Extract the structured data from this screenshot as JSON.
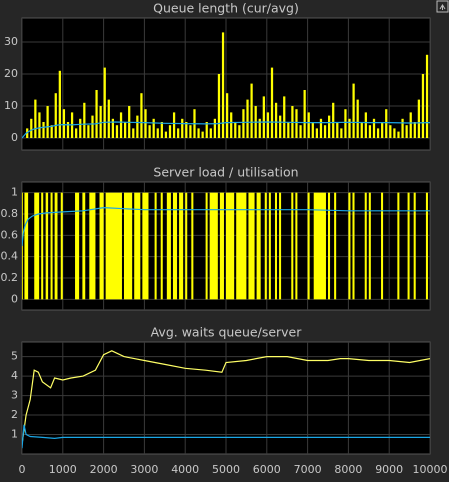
{
  "chart_data": [
    {
      "type": "line",
      "title": "Queue length (cur/avg)",
      "xlim": [
        0,
        10000
      ],
      "ylim": [
        -3.75,
        37.5
      ],
      "yticks": [
        0,
        10,
        20,
        30
      ],
      "xticks": [
        0,
        1000,
        2000,
        3000,
        4000,
        5000,
        6000,
        7000,
        8000,
        9000,
        10000
      ],
      "show_xtick_labels": false,
      "grid": true,
      "series": [
        {
          "type": "bar",
          "color": "#ffff00",
          "x": [
            0,
            100,
            200,
            300,
            400,
            500,
            600,
            700,
            800,
            900,
            1000,
            1100,
            1200,
            1300,
            1400,
            1500,
            1600,
            1700,
            1800,
            1900,
            2000,
            2100,
            2200,
            2300,
            2400,
            2500,
            2600,
            2700,
            2800,
            2900,
            3000,
            3100,
            3200,
            3300,
            3400,
            3500,
            3600,
            3700,
            3800,
            3900,
            4000,
            4100,
            4200,
            4300,
            4400,
            4500,
            4600,
            4700,
            4800,
            4900,
            5000,
            5100,
            5200,
            5300,
            5400,
            5500,
            5600,
            5700,
            5800,
            5900,
            6000,
            6100,
            6200,
            6300,
            6400,
            6500,
            6600,
            6700,
            6800,
            6900,
            7000,
            7100,
            7200,
            7300,
            7400,
            7500,
            7600,
            7700,
            7800,
            7900,
            8000,
            8100,
            8200,
            8300,
            8400,
            8500,
            8600,
            8700,
            8800,
            8900,
            9000,
            9100,
            9200,
            9300,
            9400,
            9500,
            9600,
            9700,
            9800,
            9900,
            10000
          ],
          "values": [
            0,
            3,
            6,
            12,
            8,
            5,
            10,
            4,
            14,
            21,
            9,
            5,
            8,
            3,
            6,
            11,
            4,
            7,
            15,
            10,
            22,
            12,
            6,
            4,
            8,
            5,
            10,
            3,
            7,
            14,
            9,
            4,
            6,
            3,
            5,
            2,
            4,
            8,
            3,
            6,
            5,
            4,
            9,
            3,
            2,
            5,
            3,
            6,
            20,
            33,
            14,
            8,
            5,
            4,
            9,
            12,
            17,
            10,
            6,
            13,
            8,
            22,
            11,
            7,
            13,
            5,
            10,
            9,
            4,
            15,
            8,
            5,
            3,
            6,
            4,
            7,
            11,
            5,
            3,
            9,
            6,
            17,
            12,
            5,
            8,
            4,
            6,
            3,
            5,
            9,
            4,
            3,
            2,
            6,
            4,
            8,
            5,
            12,
            20,
            26,
            10
          ]
        },
        {
          "type": "line",
          "color": "#1aa6e6",
          "x": [
            0,
            100,
            200,
            300,
            400,
            500,
            700,
            900,
            1000,
            1200,
            1500,
            1800,
            2000,
            2300,
            2600,
            3000,
            3500,
            4000,
            4500,
            4800,
            5000,
            5500,
            6000,
            6500,
            7000,
            7500,
            8000,
            8500,
            9000,
            9500,
            10000
          ],
          "values": [
            0,
            1.5,
            2.3,
            2.8,
            3.1,
            3.3,
            3.6,
            4.1,
            4.2,
            4.1,
            4.3,
            4.4,
            4.9,
            5,
            4.9,
            4.8,
            4.6,
            4.5,
            4.4,
            4.5,
            4.8,
            4.9,
            5,
            4.9,
            4.8,
            4.8,
            4.9,
            4.8,
            4.8,
            4.7,
            4.8
          ]
        }
      ]
    },
    {
      "type": "line",
      "title": "Server load / utilisation",
      "xlim": [
        0,
        10000
      ],
      "ylim": [
        -0.1,
        1.1
      ],
      "yticks": [
        0,
        0.2,
        0.4,
        0.6,
        0.8,
        1
      ],
      "xticks": [
        0,
        1000,
        2000,
        3000,
        4000,
        5000,
        6000,
        7000,
        8000,
        9000,
        10000
      ],
      "show_xtick_labels": false,
      "grid": true,
      "series": [
        {
          "type": "stairs",
          "color": "#ffff00",
          "x": [
            0,
            20,
            60,
            150,
            300,
            420,
            470,
            520,
            580,
            640,
            700,
            750,
            800,
            870,
            950,
            1000,
            1300,
            1400,
            1480,
            1550,
            1650,
            1800,
            1900,
            2000,
            2050,
            2450,
            2500,
            2700,
            2750,
            2900,
            2950,
            3100,
            3250,
            3300,
            3400,
            3450,
            3550,
            3650,
            3700,
            3800,
            3850,
            3950,
            4000,
            4050,
            4150,
            4200,
            4500,
            4550,
            4600,
            4800,
            4850,
            4950,
            5000,
            5200,
            5250,
            5500,
            5550,
            5700,
            5750,
            5850,
            5950,
            6000,
            6050,
            6100,
            6200,
            6250,
            6300,
            6350,
            6600,
            6650,
            6700,
            6750,
            7000,
            7050,
            7150,
            7450,
            7500,
            7550,
            7650,
            7700,
            8000,
            8050,
            8100,
            8150,
            8400,
            8450,
            8500,
            8550,
            8800,
            8850,
            9200,
            9250,
            9450,
            9500,
            9600,
            9650,
            9900,
            9950,
            10000
          ],
          "values": [
            1,
            0,
            1,
            0,
            1,
            0,
            1,
            0,
            1,
            0,
            1,
            0,
            1,
            0,
            1,
            0,
            1,
            0,
            1,
            0,
            1,
            0,
            1,
            0,
            1,
            0,
            1,
            0,
            1,
            0,
            1,
            0,
            1,
            0,
            1,
            0,
            1,
            0,
            1,
            0,
            1,
            0,
            1,
            0,
            1,
            0,
            1,
            0,
            1,
            0,
            1,
            0,
            1,
            0,
            1,
            0,
            1,
            0,
            1,
            0,
            1,
            0,
            1,
            0,
            1,
            0,
            1,
            0,
            1,
            0,
            1,
            0,
            1,
            0,
            1,
            0,
            1,
            0,
            1,
            0,
            1,
            0,
            1,
            0,
            1,
            0,
            1,
            0,
            1,
            0,
            1,
            0,
            1,
            0,
            1,
            0,
            1,
            0,
            1
          ]
        },
        {
          "type": "line",
          "color": "#1aa6e6",
          "x": [
            0,
            30,
            80,
            150,
            250,
            400,
            600,
            1000,
            1500,
            2000,
            2500,
            3000,
            4000,
            5000,
            6000,
            7000,
            8000,
            9000,
            10000
          ],
          "values": [
            0.5,
            0.62,
            0.7,
            0.75,
            0.78,
            0.8,
            0.81,
            0.82,
            0.83,
            0.86,
            0.85,
            0.84,
            0.84,
            0.84,
            0.84,
            0.84,
            0.83,
            0.83,
            0.83
          ]
        }
      ]
    },
    {
      "type": "line",
      "title": "Avg. waits queue/server",
      "xlim": [
        0,
        10000
      ],
      "ylim": [
        0,
        5.75
      ],
      "yticks": [
        1,
        2,
        3,
        4,
        5
      ],
      "xticks": [
        0,
        1000,
        2000,
        3000,
        4000,
        5000,
        6000,
        7000,
        8000,
        9000,
        10000
      ],
      "show_xtick_labels": true,
      "grid": true,
      "series": [
        {
          "type": "line",
          "color": "#ffff66",
          "x": [
            0,
            100,
            200,
            300,
            400,
            500,
            700,
            800,
            1000,
            1200,
            1500,
            1800,
            2000,
            2200,
            2500,
            3000,
            3500,
            4000,
            4500,
            4900,
            5000,
            5500,
            6000,
            6500,
            7000,
            7500,
            7800,
            8000,
            8500,
            9000,
            9500,
            10000
          ],
          "values": [
            0.5,
            2,
            2.8,
            4.3,
            4.2,
            3.7,
            3.4,
            3.9,
            3.8,
            3.9,
            4,
            4.3,
            5.1,
            5.3,
            5,
            4.8,
            4.6,
            4.4,
            4.3,
            4.2,
            4.7,
            4.8,
            5,
            5,
            4.8,
            4.8,
            4.9,
            4.9,
            4.8,
            4.8,
            4.7,
            4.9
          ]
        },
        {
          "type": "line",
          "color": "#1aa6e6",
          "x": [
            0,
            50,
            100,
            200,
            500,
            800,
            1000,
            2000,
            4000,
            6000,
            8000,
            10000
          ],
          "values": [
            0.3,
            1.5,
            1,
            0.9,
            0.85,
            0.8,
            0.85,
            0.85,
            0.85,
            0.85,
            0.85,
            0.85
          ]
        }
      ]
    }
  ]
}
